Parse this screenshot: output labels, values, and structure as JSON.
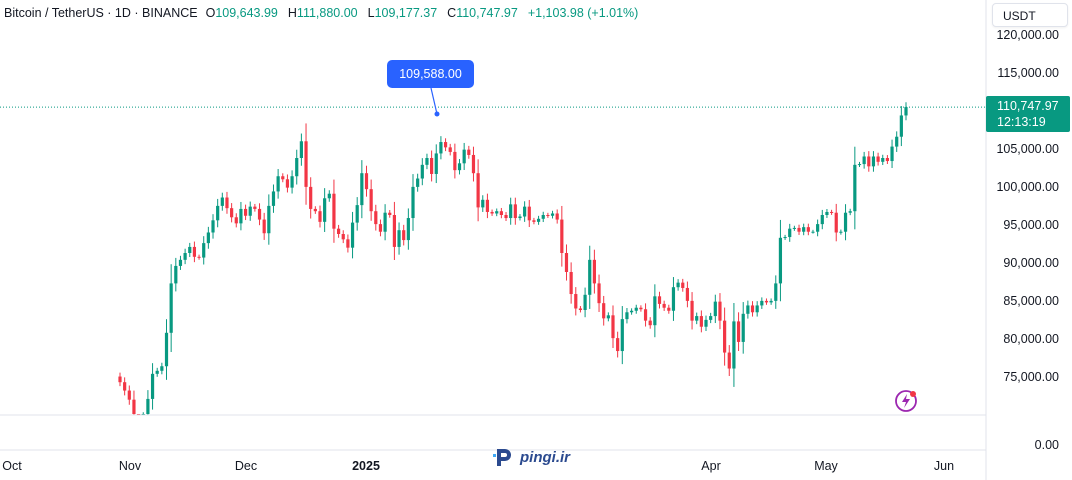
{
  "legend": {
    "symbol": "Bitcoin / TetherUS · 1D · BINANCE",
    "open_label": "O",
    "open": "109,643.99",
    "high_label": "H",
    "high": "111,880.00",
    "low_label": "L",
    "low": "109,177.37",
    "close_label": "C",
    "close": "110,747.97",
    "change": "+1,103.98 (+1.01%)"
  },
  "currency_button": "USDT",
  "callout": "109,588.00",
  "last_price": {
    "price": "110,747.97",
    "countdown": "12:13:19"
  },
  "yaxis": {
    "labels": [
      "120,000.00",
      "115,000.00",
      "105,000.00",
      "100,000.00",
      "95,000.00",
      "90,000.00",
      "85,000.00",
      "80,000.00",
      "75,000.00"
    ],
    "volume_label": "0.00"
  },
  "xaxis": {
    "labels": [
      "Oct",
      "Nov",
      "Dec",
      "2025",
      "Apr",
      "May",
      "Jun"
    ]
  },
  "watermark": "pingi.ir",
  "colors": {
    "up": "#089981",
    "down": "#f23645",
    "accent": "#2962ff",
    "flash": "#9c27b0"
  },
  "chart_data": {
    "type": "candlestick",
    "xlabel": "",
    "ylabel": "",
    "ylim": [
      70000,
      121000
    ],
    "closes": [
      74500,
      73400,
      72200,
      69500,
      68000,
      69700,
      72300,
      75600,
      76000,
      76600,
      81000,
      87500,
      89800,
      90600,
      91500,
      92300,
      91000,
      90900,
      92800,
      94200,
      95800,
      97700,
      98800,
      97400,
      96200,
      95400,
      97300,
      96400,
      97600,
      97300,
      95900,
      94100,
      97700,
      99600,
      101600,
      101200,
      100100,
      101600,
      104000,
      106200,
      100200,
      97300,
      97000,
      95600,
      98700,
      99300,
      94700,
      94000,
      93300,
      92200,
      95500,
      97800,
      102000,
      99900,
      97000,
      95300,
      94300,
      96800,
      96500,
      92300,
      94500,
      93200,
      96100,
      100200,
      101300,
      103100,
      104000,
      101900,
      104600,
      106100,
      105400,
      104800,
      102400,
      103300,
      105100,
      104400,
      102000,
      97500,
      98500,
      96900,
      96700,
      97000,
      96500,
      96100,
      97900,
      96100,
      96300,
      97600,
      95800,
      95600,
      96000,
      96500,
      96400,
      96700,
      95900,
      91500,
      89000,
      86100,
      84200,
      84000,
      86000,
      90600,
      87500,
      84900,
      82900,
      83300,
      80300,
      78600,
      82800,
      83700,
      83900,
      84300,
      84100,
      82600,
      82000,
      85800,
      84800,
      84300,
      83900,
      87000,
      87600,
      86900,
      85200,
      82600,
      83200,
      81800,
      82700,
      83200,
      85100,
      82600,
      78400,
      76300,
      82500,
      79800,
      83500,
      84600,
      83700,
      84600,
      85200,
      85000,
      85200,
      87500,
      93500,
      93600,
      94700,
      94800,
      94300,
      94900,
      94300,
      94300,
      95300,
      96500,
      96900,
      96800,
      94200,
      94300,
      96800,
      97000,
      103100,
      103200,
      104200,
      102900,
      104200,
      103500,
      104000,
      103600,
      105500,
      106800,
      109600,
      110700
    ]
  }
}
